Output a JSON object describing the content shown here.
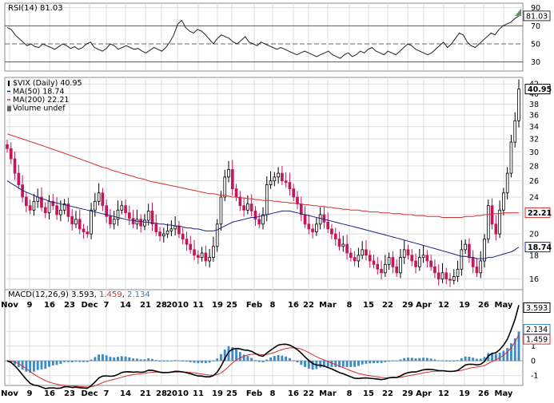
{
  "chart_data": {
    "type": "candlestick",
    "x_labels": [
      "Nov",
      "9",
      "16",
      "23",
      "Dec",
      "7",
      "14",
      "21",
      "28",
      "2010",
      "11",
      "19",
      "25",
      "Feb",
      "8",
      "16",
      "22",
      "Mar",
      "8",
      "15",
      "22",
      "29",
      "Apr",
      "12",
      "19",
      "26",
      "May"
    ],
    "rsi": {
      "label": "RSI(14) 81.03",
      "current_tag": "81.03",
      "ticks": [
        90,
        70,
        50,
        30
      ],
      "tick_labels": [
        "90",
        "70",
        "50",
        "30"
      ],
      "ylim": [
        20,
        95
      ],
      "values": [
        68,
        66,
        60,
        56,
        52,
        48,
        50,
        47,
        46,
        50,
        48,
        46,
        44,
        47,
        50,
        48,
        45,
        47,
        44,
        46,
        50,
        52,
        46,
        44,
        42,
        45,
        50,
        48,
        44,
        46,
        48,
        46,
        44,
        45,
        42,
        40,
        43,
        46,
        44,
        42,
        46,
        52,
        60,
        72,
        76,
        68,
        64,
        62,
        66,
        64,
        60,
        55,
        50,
        56,
        60,
        58,
        56,
        52,
        50,
        54,
        58,
        52,
        50,
        48,
        52,
        50,
        48,
        46,
        44,
        46,
        44,
        42,
        40,
        38,
        40,
        42,
        40,
        38,
        36,
        38,
        40,
        42,
        38,
        36,
        34,
        38,
        40,
        36,
        38,
        42,
        40,
        44,
        46,
        42,
        40,
        38,
        42,
        40,
        38,
        42,
        46,
        50,
        48,
        44,
        42,
        40,
        38,
        40,
        44,
        48,
        52,
        46,
        50,
        56,
        62,
        60,
        52,
        48,
        46,
        50,
        54,
        58,
        62,
        60,
        66,
        70,
        72,
        74,
        78,
        81
      ]
    },
    "main": {
      "legend": [
        {
          "label": "$VIX (Daily) 40.95",
          "color": "#000000",
          "type": "symbol"
        },
        {
          "label": "MA(50) 18.74",
          "color": "#1a237e",
          "type": "line"
        },
        {
          "label": "MA(200) 22.21",
          "color": "#d32f2f",
          "type": "line"
        },
        {
          "label": "Volume undef",
          "color": "#555555",
          "type": "bar"
        }
      ],
      "ticks": [
        42,
        40,
        38,
        36,
        34,
        32,
        30,
        28,
        26,
        24,
        22,
        20,
        18,
        16
      ],
      "tick_labels": [
        "42",
        "40",
        "38",
        "36",
        "34",
        "32",
        "30",
        "28",
        "26",
        "24",
        "22",
        "20",
        "18",
        "16"
      ],
      "ylim": [
        15,
        42.2
      ],
      "scale": "log",
      "tags": [
        {
          "label": "40.95",
          "value": 40.95,
          "color": "#000000",
          "bg": "#ffffff"
        },
        {
          "label": "22.21",
          "value": 22.21,
          "color": "#d32f2f",
          "bg": "#ffffff"
        },
        {
          "label": "18.74",
          "value": 18.74,
          "color": "#1a237e",
          "bg": "#ffffff"
        }
      ],
      "close": [
        30.5,
        29.0,
        27.0,
        25.5,
        24.0,
        23.0,
        22.5,
        23.5,
        24.0,
        22.8,
        22.2,
        23.5,
        23.0,
        22.0,
        22.5,
        23.2,
        21.8,
        21.0,
        21.5,
        20.5,
        20.2,
        20.0,
        22.5,
        23.5,
        24.5,
        23.0,
        21.8,
        21.0,
        21.5,
        22.5,
        23.0,
        22.2,
        21.6,
        21.0,
        21.5,
        20.8,
        21.4,
        22.4,
        21.0,
        20.2,
        19.8,
        20.0,
        20.3,
        20.5,
        20.8,
        20.0,
        19.5,
        19.0,
        18.5,
        18.0,
        17.8,
        18.2,
        17.5,
        17.8,
        18.8,
        21.0,
        24.0,
        26.5,
        27.5,
        25.0,
        24.0,
        23.0,
        22.5,
        23.2,
        22.4,
        21.5,
        21.0,
        22.0,
        25.5,
        26.0,
        26.5,
        27.0,
        26.0,
        25.8,
        25.0,
        24.0,
        23.2,
        22.0,
        21.0,
        20.5,
        20.2,
        21.0,
        22.0,
        21.2,
        20.5,
        20.0,
        19.5,
        18.8,
        19.0,
        18.2,
        17.8,
        17.5,
        18.0,
        18.5,
        18.0,
        17.5,
        17.2,
        16.8,
        16.5,
        17.2,
        17.8,
        17.0,
        16.5,
        17.8,
        18.5,
        18.0,
        17.5,
        17.0,
        17.8,
        18.0,
        17.5,
        17.0,
        16.5,
        16.0,
        16.5,
        16.0,
        15.9,
        16.2,
        16.8,
        18.5,
        19.0,
        17.8,
        17.0,
        16.5,
        17.5,
        19.5,
        23.0,
        21.0,
        20.0,
        22.5,
        24.5,
        27.0,
        31.5,
        35.0,
        40.95
      ],
      "ma50": [
        26.0,
        25.7,
        25.4,
        25.1,
        24.8,
        24.6,
        24.4,
        24.2,
        24.0,
        23.8,
        23.7,
        23.5,
        23.4,
        23.3,
        23.2,
        23.1,
        23.0,
        22.9,
        22.8,
        22.7,
        22.6,
        22.5,
        22.4,
        22.3,
        22.2,
        22.1,
        22.0,
        21.9,
        21.8,
        21.7,
        21.6,
        21.5,
        21.4,
        21.4,
        21.3,
        21.3,
        21.2,
        21.2,
        21.1,
        21.1,
        21.0,
        21.0,
        20.9,
        20.9,
        20.8,
        20.8,
        20.7,
        20.6,
        20.6,
        20.5,
        20.5,
        20.4,
        20.3,
        20.3,
        20.3,
        20.4,
        20.6,
        20.8,
        21.0,
        21.2,
        21.3,
        21.4,
        21.5,
        21.6,
        21.7,
        21.7,
        21.8,
        21.9,
        22.0,
        22.1,
        22.2,
        22.3,
        22.4,
        22.4,
        22.4,
        22.3,
        22.2,
        22.1,
        22.0,
        21.9,
        21.8,
        21.7,
        21.6,
        21.5,
        21.4,
        21.3,
        21.2,
        21.1,
        21.0,
        20.9,
        20.8,
        20.7,
        20.6,
        20.5,
        20.4,
        20.3,
        20.2,
        20.1,
        20.0,
        19.9,
        19.8,
        19.7,
        19.6,
        19.5,
        19.4,
        19.3,
        19.2,
        19.1,
        19.0,
        18.9,
        18.8,
        18.7,
        18.6,
        18.5,
        18.4,
        18.3,
        18.2,
        18.1,
        18.0,
        17.9,
        17.9,
        17.8,
        17.8,
        17.7,
        17.7,
        17.7,
        17.8,
        17.8,
        17.9,
        18.0,
        18.1,
        18.2,
        18.3,
        18.5,
        18.74
      ],
      "ma200": [
        32.8,
        32.6,
        32.4,
        32.2,
        32.0,
        31.8,
        31.6,
        31.4,
        31.2,
        31.0,
        30.8,
        30.6,
        30.4,
        30.2,
        30.0,
        29.8,
        29.6,
        29.4,
        29.2,
        29.0,
        28.8,
        28.6,
        28.4,
        28.2,
        28.0,
        27.8,
        27.7,
        27.5,
        27.3,
        27.2,
        27.0,
        26.9,
        26.7,
        26.6,
        26.4,
        26.3,
        26.2,
        26.0,
        25.9,
        25.8,
        25.7,
        25.6,
        25.5,
        25.4,
        25.3,
        25.2,
        25.1,
        25.0,
        24.9,
        24.8,
        24.7,
        24.6,
        24.5,
        24.4,
        24.4,
        24.3,
        24.2,
        24.2,
        24.1,
        24.0,
        24.0,
        23.9,
        23.9,
        23.8,
        23.8,
        23.7,
        23.7,
        23.6,
        23.6,
        23.6,
        23.5,
        23.5,
        23.4,
        23.4,
        23.3,
        23.3,
        23.2,
        23.2,
        23.1,
        23.1,
        23.0,
        23.0,
        22.9,
        22.9,
        22.8,
        22.8,
        22.7,
        22.7,
        22.6,
        22.6,
        22.5,
        22.5,
        22.5,
        22.4,
        22.4,
        22.3,
        22.3,
        22.3,
        22.2,
        22.2,
        22.2,
        22.1,
        22.1,
        22.1,
        22.0,
        22.0,
        22.0,
        21.9,
        21.9,
        21.9,
        21.8,
        21.8,
        21.8,
        21.8,
        21.7,
        21.7,
        21.7,
        21.7,
        21.7,
        21.7,
        21.8,
        21.8,
        21.8,
        21.9,
        21.9,
        22.0,
        22.0,
        22.1,
        22.1,
        22.1,
        22.2,
        22.2,
        22.2,
        22.21,
        22.21
      ]
    },
    "macd": {
      "label_prefix": "MACD(12,26,9) ",
      "label_macd": "3.593",
      "label_signal": "1.459",
      "label_hist": "2.134",
      "sep": ", ",
      "ticks": [
        2,
        1,
        0,
        -1
      ],
      "tick_labels": [
        "2",
        "1",
        "0",
        "-1"
      ],
      "ylim": [
        -1.5,
        4.0
      ],
      "tags": [
        {
          "label": "3.593",
          "value": 3.593,
          "color": "#000000"
        },
        {
          "label": "2.134",
          "value": 2.134,
          "color": "#2a7fc0"
        },
        {
          "label": "1.459",
          "value": 1.459,
          "color": "#d32f2f"
        }
      ]
    }
  }
}
